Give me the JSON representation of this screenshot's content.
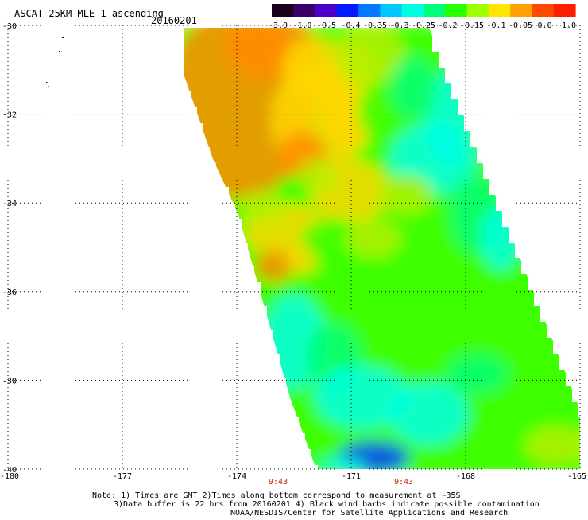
{
  "header": {
    "product_title": "ASCAT 25KM MLE-1 ascending",
    "date": "20160201"
  },
  "colorbar": {
    "labels": [
      "-3.0",
      "-1.0",
      "-0.5",
      "-0.4",
      "-0.35",
      "-0.3",
      "-0.25",
      "-0.2",
      "-0.15",
      "-0.1",
      "-0.05",
      "0.0",
      "1.0"
    ],
    "colors": [
      "#1a001a",
      "#3a0068",
      "#4b00c8",
      "#0019ff",
      "#0078ff",
      "#00c8ff",
      "#00ffe1",
      "#00ff78",
      "#28ff00",
      "#a0ff00",
      "#ffe600",
      "#ffa000",
      "#ff4b00",
      "#ff1e00"
    ]
  },
  "map": {
    "lat_labels": [
      "-30",
      "-32",
      "-34",
      "-36",
      "-38",
      "-40"
    ],
    "lon_labels": [
      "-180",
      "-177",
      "-174",
      "-171",
      "-168",
      "-165"
    ],
    "lat_range": [
      -40,
      -30
    ],
    "lon_range": [
      -180,
      -165
    ],
    "grid": "dotted",
    "swath_colors": {
      "orange": "#ff8c00",
      "yellow": "#ffd700",
      "yellow_green": "#b4f000",
      "green": "#3cff00",
      "green_cyan": "#00ff78",
      "cyan": "#00ffe6",
      "blue": "#0046ff"
    }
  },
  "time_labels": [
    "9:43",
    "9:43"
  ],
  "footer": {
    "note_line1": "Note: 1) Times are GMT 2)Times along bottom correspond to measurement at ~35S",
    "note_line2": "3)Data buffer is 22 hrs from 20160201 4) Black wind barbs indicate possible contamination",
    "credit": "NOAA/NESDIS/Center for Satellite Applications and Research"
  }
}
